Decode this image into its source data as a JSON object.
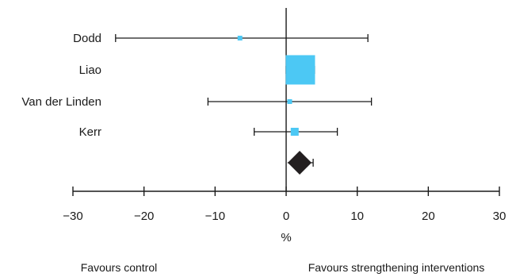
{
  "chart_data": {
    "type": "forest",
    "xlabel": "%",
    "xlim": [
      -30,
      30
    ],
    "xticks": [
      -30,
      -20,
      -10,
      0,
      10,
      20,
      30
    ],
    "xtick_labels": [
      "−30",
      "−20",
      "−10",
      "0",
      "10",
      "20",
      "30"
    ],
    "studies": [
      {
        "name": "Dodd",
        "estimate": -6.5,
        "ci_low": -24.0,
        "ci_high": 11.5,
        "weight": 1
      },
      {
        "name": "Liao",
        "estimate": 2.0,
        "ci_low": 0.0,
        "ci_high": 4.0,
        "weight": 6
      },
      {
        "name": "Van der Linden",
        "estimate": 0.5,
        "ci_low": -11.0,
        "ci_high": 12.0,
        "weight": 1
      },
      {
        "name": "Kerr",
        "estimate": 1.2,
        "ci_low": -4.5,
        "ci_high": 7.2,
        "weight": 2
      }
    ],
    "pooled": {
      "estimate": 1.9,
      "ci_low": 0.2,
      "ci_high": 3.8
    },
    "annotations": {
      "left": "Favours control",
      "right": "Favours strengthening interventions"
    },
    "colors": {
      "study_marker": "#4cc8f4",
      "pooled_marker": "#231f20",
      "lines": "#1a1a1a"
    }
  }
}
